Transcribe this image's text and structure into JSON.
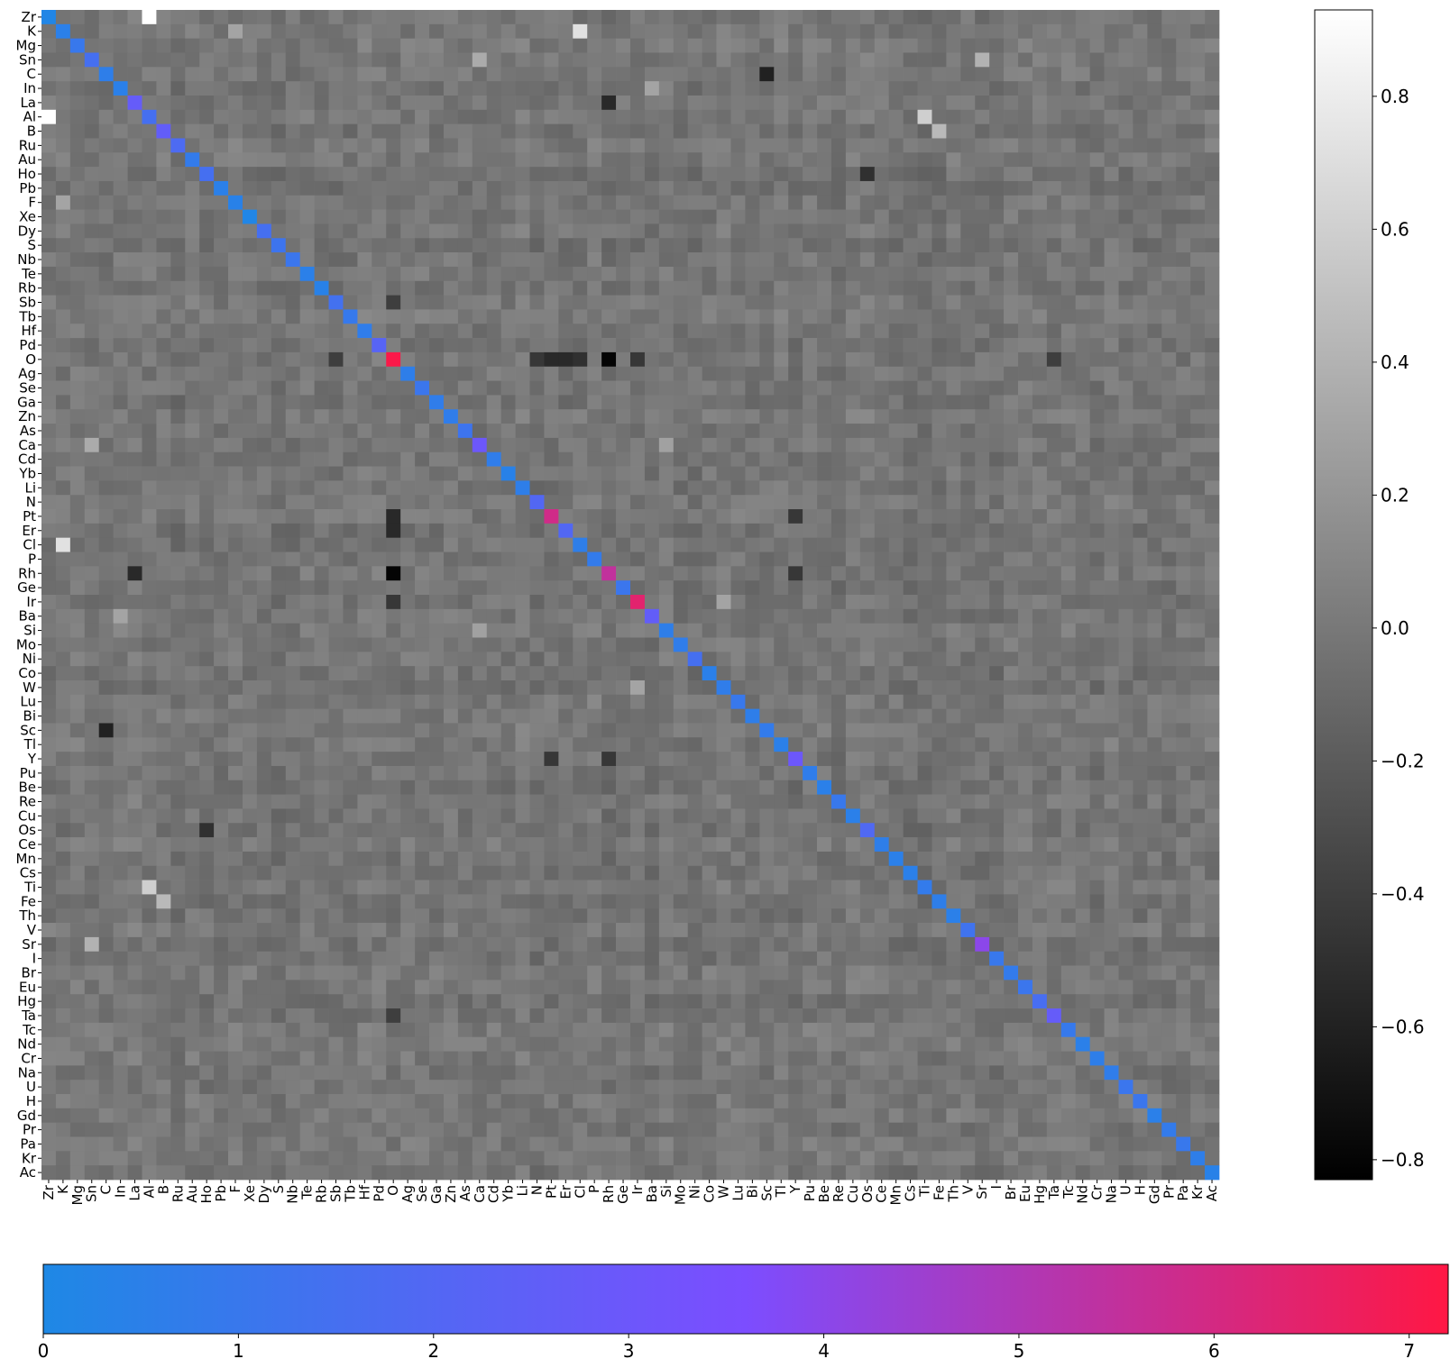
{
  "chart_data": {
    "type": "heatmap",
    "title": "",
    "xlabel": "",
    "ylabel": "",
    "labels": [
      "Zr",
      "K",
      "Mg",
      "Sn",
      "C",
      "In",
      "La",
      "Al",
      "B",
      "Ru",
      "Au",
      "Ho",
      "Pb",
      "F",
      "Xe",
      "Dy",
      "S",
      "Nb",
      "Te",
      "Rb",
      "Sb",
      "Tb",
      "Hf",
      "Pd",
      "O",
      "Ag",
      "Se",
      "Ga",
      "Zn",
      "As",
      "Ca",
      "Cd",
      "Yb",
      "Li",
      "N",
      "Pt",
      "Er",
      "Cl",
      "P",
      "Rh",
      "Ge",
      "Ir",
      "Ba",
      "Si",
      "Mo",
      "Ni",
      "Co",
      "W",
      "Lu",
      "Bi",
      "Sc",
      "Tl",
      "Y",
      "Pu",
      "Be",
      "Re",
      "Cu",
      "Os",
      "Ce",
      "Mn",
      "Cs",
      "Ti",
      "Fe",
      "Th",
      "V",
      "Sr",
      "I",
      "Br",
      "Eu",
      "Hg",
      "Ta",
      "Tc",
      "Nd",
      "Cr",
      "Na",
      "U",
      "H",
      "Gd",
      "Pr",
      "Pa",
      "Kr",
      "Ac"
    ],
    "x_tick_labels": [
      "Zr",
      "K",
      "Mg",
      "Sn",
      "C",
      "In",
      "La",
      "Al",
      "B",
      "Ru",
      "Au",
      "Ho",
      "Pb",
      "F",
      "Xe",
      "Dy",
      "S",
      "Nb",
      "Te",
      "Rb",
      "Sb",
      "Tb",
      "Hf",
      "Pd",
      "O",
      "Ag",
      "Se",
      "Ga",
      "Zn",
      "As",
      "Ca",
      "Cd",
      "Yb",
      "Li",
      "N",
      "Pt",
      "Er",
      "Cl",
      "P",
      "Rh",
      "Ge",
      "Ir",
      "Ba",
      "Si",
      "Mo",
      "Ni",
      "Co",
      "W",
      "Lu",
      "Bi",
      "Sc",
      "Tl",
      "Y",
      "Pu",
      "Be",
      "Re",
      "Cu",
      "Os",
      "Ce",
      "Mn",
      "Cs",
      "Ti",
      "Fe",
      "Th",
      "V",
      "Sr",
      "I",
      "Br",
      "Eu",
      "Hg",
      "Ta",
      "Tc",
      "Nd",
      "Cr",
      "Na",
      "U",
      "H",
      "Gd",
      "Pr",
      "Pa",
      "Kr",
      "Ac"
    ],
    "y_tick_labels": [
      "Zr",
      "K",
      "Mg",
      "Sn",
      "C",
      "In",
      "La",
      "Al",
      "B",
      "Ru",
      "Au",
      "Ho",
      "Pb",
      "F",
      "Xe",
      "Dy",
      "S",
      "Nb",
      "Te",
      "Rb",
      "Sb",
      "Tb",
      "Hf",
      "Pd",
      "O",
      "Ag",
      "Se",
      "Ga",
      "Zn",
      "As",
      "Ca",
      "Cd",
      "Yb",
      "Li",
      "N",
      "Pt",
      "Er",
      "Cl",
      "P",
      "Rh",
      "Ge",
      "Ir",
      "Ba",
      "Si",
      "Mo",
      "Ni",
      "Co",
      "W",
      "Lu",
      "Bi",
      "Sc",
      "Tl",
      "Y",
      "Pu",
      "Be",
      "Re",
      "Cu",
      "Os",
      "Ce",
      "Mn",
      "Cs",
      "Ti",
      "Fe",
      "Th",
      "V",
      "Sr",
      "I",
      "Br",
      "Eu",
      "Hg",
      "Ta",
      "Tc",
      "Nd",
      "Cr",
      "Na",
      "U",
      "H",
      "Gd",
      "Pr",
      "Pa",
      "Kr",
      "Ac"
    ],
    "diagonal_values": [
      0.1,
      0.5,
      1.0,
      1.5,
      0.6,
      0.5,
      2.7,
      1.5,
      2.6,
      1.8,
      0.8,
      1.5,
      0.5,
      0.4,
      0.1,
      1.5,
      1.2,
      1.1,
      0.5,
      0.4,
      1.4,
      0.9,
      0.7,
      2.2,
      7.1,
      0.6,
      1.1,
      0.7,
      0.7,
      1.2,
      3.0,
      0.7,
      0.4,
      0.6,
      2.0,
      5.9,
      2.0,
      0.6,
      0.8,
      5.5,
      1.1,
      6.4,
      2.6,
      0.6,
      0.7,
      1.5,
      0.5,
      0.7,
      1.0,
      0.6,
      0.8,
      0.5,
      3.0,
      0.7,
      0.5,
      1.0,
      0.5,
      1.9,
      0.6,
      0.5,
      0.5,
      0.8,
      0.6,
      0.5,
      1.3,
      4.0,
      1.0,
      0.8,
      1.1,
      1.6,
      2.7,
      0.9,
      0.5,
      0.6,
      0.7,
      1.1,
      1.1,
      0.5,
      0.8,
      1.0,
      0.6,
      0.4
    ],
    "offdiagonal_typical_value": -0.02,
    "notable_values": [
      {
        "row": "Zr",
        "col": "Al",
        "value": 0.93
      },
      {
        "row": "Al",
        "col": "Zr",
        "value": 0.93
      },
      {
        "row": "K",
        "col": "Cl",
        "value": 0.72
      },
      {
        "row": "Cl",
        "col": "K",
        "value": 0.72
      },
      {
        "row": "Al",
        "col": "Ti",
        "value": 0.6
      },
      {
        "row": "Ti",
        "col": "Al",
        "value": 0.6
      },
      {
        "row": "B",
        "col": "Fe",
        "value": 0.45
      },
      {
        "row": "Fe",
        "col": "B",
        "value": 0.45
      },
      {
        "row": "Sn",
        "col": "Sr",
        "value": 0.4
      },
      {
        "row": "Sr",
        "col": "Sn",
        "value": 0.4
      },
      {
        "row": "Sn",
        "col": "Ca",
        "value": 0.35
      },
      {
        "row": "Ca",
        "col": "Sn",
        "value": 0.35
      },
      {
        "row": "Ir",
        "col": "W",
        "value": 0.3
      },
      {
        "row": "W",
        "col": "Ir",
        "value": 0.3
      },
      {
        "row": "F",
        "col": "K",
        "value": 0.3
      },
      {
        "row": "K",
        "col": "F",
        "value": 0.3
      },
      {
        "row": "Ba",
        "col": "In",
        "value": 0.3
      },
      {
        "row": "In",
        "col": "Ba",
        "value": 0.3
      },
      {
        "row": "Si",
        "col": "Ca",
        "value": 0.28
      },
      {
        "row": "Ca",
        "col": "Si",
        "value": 0.28
      },
      {
        "row": "O",
        "col": "Rh",
        "value": -0.8
      },
      {
        "row": "Rh",
        "col": "O",
        "value": -0.8
      },
      {
        "row": "O",
        "col": "Pt",
        "value": -0.55
      },
      {
        "row": "Pt",
        "col": "O",
        "value": -0.55
      },
      {
        "row": "O",
        "col": "Er",
        "value": -0.55
      },
      {
        "row": "Er",
        "col": "O",
        "value": -0.55
      },
      {
        "row": "O",
        "col": "Ir",
        "value": -0.45
      },
      {
        "row": "Ir",
        "col": "O",
        "value": -0.45
      },
      {
        "row": "O",
        "col": "Cl",
        "value": -0.5
      },
      {
        "row": "O",
        "col": "N",
        "value": -0.45
      },
      {
        "row": "La",
        "col": "Rh",
        "value": -0.55
      },
      {
        "row": "Rh",
        "col": "La",
        "value": -0.55
      },
      {
        "row": "C",
        "col": "Sc",
        "value": -0.6
      },
      {
        "row": "Sc",
        "col": "C",
        "value": -0.6
      },
      {
        "row": "Ho",
        "col": "Os",
        "value": -0.5
      },
      {
        "row": "Os",
        "col": "Ho",
        "value": -0.5
      },
      {
        "row": "Pt",
        "col": "Y",
        "value": -0.45
      },
      {
        "row": "Y",
        "col": "Pt",
        "value": -0.45
      },
      {
        "row": "Y",
        "col": "Rh",
        "value": -0.45
      },
      {
        "row": "Rh",
        "col": "Y",
        "value": -0.45
      },
      {
        "row": "O",
        "col": "Ta",
        "value": -0.4
      },
      {
        "row": "Ta",
        "col": "O",
        "value": -0.4
      },
      {
        "row": "O",
        "col": "Sb",
        "value": -0.4
      },
      {
        "row": "Sb",
        "col": "O",
        "value": -0.4
      }
    ],
    "colorbars": [
      {
        "id": "offdiagonal",
        "orientation": "vertical",
        "range": [
          -0.83,
          0.93
        ],
        "ticks": [
          -0.8,
          -0.6,
          -0.4,
          -0.2,
          0.0,
          0.2,
          0.4,
          0.6,
          0.8
        ],
        "tick_labels": [
          "−0.8",
          "−0.6",
          "−0.4",
          "−0.2",
          "0.0",
          "0.2",
          "0.4",
          "0.6",
          "0.8"
        ],
        "colors": [
          "#000000",
          "#ffffff"
        ]
      },
      {
        "id": "diagonal",
        "orientation": "horizontal",
        "range": [
          0,
          7.2
        ],
        "ticks": [
          0,
          1,
          2,
          3,
          4,
          5,
          6,
          7
        ],
        "tick_labels": [
          "0",
          "1",
          "2",
          "3",
          "4",
          "5",
          "6",
          "7"
        ],
        "colors": [
          "#1e88e5",
          "#7c4dff",
          "#ff1744"
        ]
      }
    ],
    "grid": false
  }
}
